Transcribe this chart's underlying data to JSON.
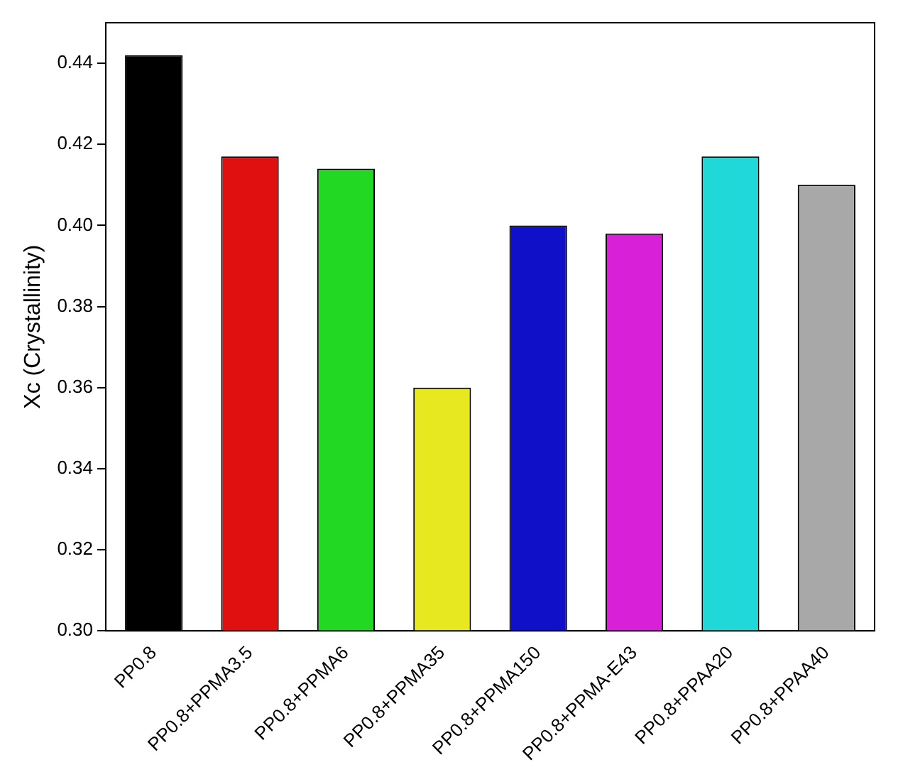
{
  "chart_data": {
    "type": "bar",
    "ylabel": "Xc (Crystallinity)",
    "categories": [
      "PP0.8",
      "PP0.8+PPMA3.5",
      "PP0.8+PPMA6",
      "PP0.8+PPMA35",
      "PP0.8+PPMA150",
      "PP0.8+PPMA-E43",
      "PP0.8+PPAA20",
      "PP0.8+PPAA40"
    ],
    "values": [
      0.442,
      0.417,
      0.414,
      0.36,
      0.4,
      0.398,
      0.417,
      0.41
    ],
    "colors": [
      "#000000",
      "#e01010",
      "#22d822",
      "#e8e820",
      "#1010c8",
      "#d820d8",
      "#20d8d8",
      "#a8a8a8"
    ],
    "ylim": [
      0.3,
      0.45
    ],
    "yticks": [
      {
        "value": 0.3,
        "label": "0.30"
      },
      {
        "value": 0.32,
        "label": "0.32"
      },
      {
        "value": 0.34,
        "label": "0.34"
      },
      {
        "value": 0.36,
        "label": "0.36"
      },
      {
        "value": 0.38,
        "label": "0.38"
      },
      {
        "value": 0.4,
        "label": "0.40"
      },
      {
        "value": 0.42,
        "label": "0.42"
      },
      {
        "value": 0.44,
        "label": "0.44"
      }
    ],
    "grid": false,
    "legend": false
  }
}
